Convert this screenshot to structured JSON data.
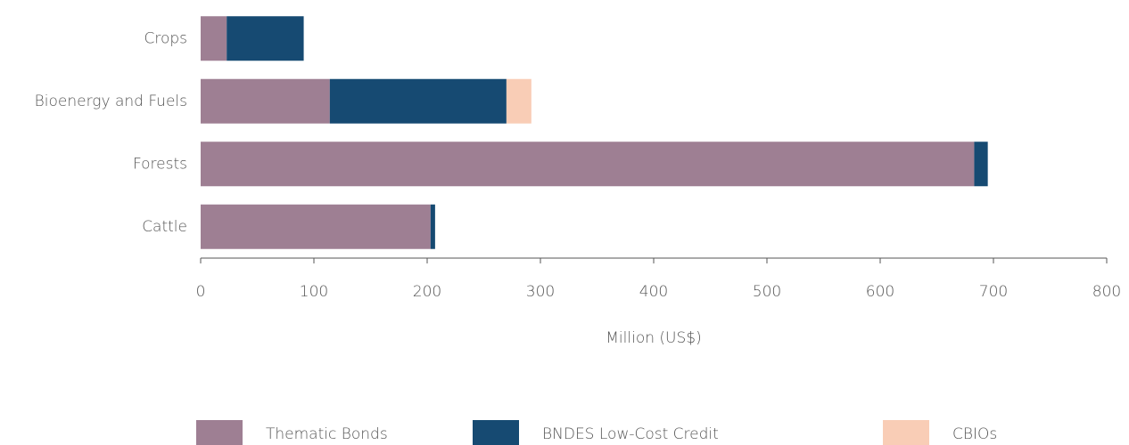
{
  "chart_data": {
    "type": "stacked_barh",
    "categories": [
      "Crops",
      "Bioenergy and Fuels",
      "Forests",
      "Cattle"
    ],
    "series": [
      {
        "name": "Thematic Bonds",
        "color": "#9e7f93",
        "values": [
          23,
          114,
          683,
          203
        ]
      },
      {
        "name": "BNDES Low-Cost Credit",
        "color": "#164a72",
        "values": [
          68,
          156,
          12,
          4
        ]
      },
      {
        "name": "CBIOs",
        "color": "#f9cdb6",
        "values": [
          0,
          22,
          0,
          0
        ]
      }
    ],
    "xlim": [
      0,
      800
    ],
    "xticks": [
      0,
      100,
      200,
      300,
      400,
      500,
      600,
      700,
      800
    ],
    "xlabel": "Million (US$)",
    "grid": false,
    "legend": "bottom"
  }
}
